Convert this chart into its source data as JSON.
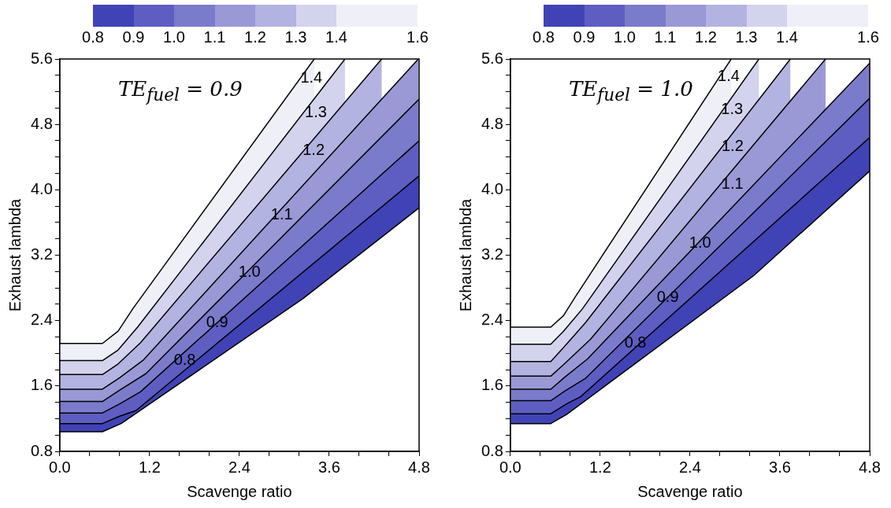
{
  "chart_data": [
    {
      "type": "area",
      "xlabel": "Scavenge ratio",
      "ylabel": "Exhaust lambda",
      "annotations": [
        "TE$_{fuel}$ = 0.9"
      ],
      "xlim": [
        0,
        4.8
      ],
      "xticks": [
        {
          "value": 0,
          "label": "0.0"
        },
        {
          "value": 0.4,
          "label": null
        },
        {
          "value": 0.8,
          "label": null
        },
        1.2,
        {
          "value": 1.6,
          "label": null
        },
        {
          "value": 2,
          "label": null
        },
        2.4,
        {
          "value": 2.8,
          "label": null
        },
        {
          "value": 3.2,
          "label": null
        },
        3.6,
        {
          "value": 4,
          "label": null
        },
        {
          "value": 4.4,
          "label": null
        },
        4.8
      ],
      "ylim": [
        0.8,
        5.6
      ],
      "yticks": [
        0.8,
        {
          "value": 1,
          "label": null
        },
        {
          "value": 1.2,
          "label": null
        },
        {
          "value": 1.4,
          "label": null
        },
        1.6,
        {
          "value": 1.8,
          "label": null
        },
        {
          "value": 2,
          "label": null
        },
        {
          "value": 2.2,
          "label": null
        },
        2.4,
        {
          "value": 2.6,
          "label": null
        },
        {
          "value": 2.8,
          "label": null
        },
        {
          "value": 3,
          "label": null
        },
        3.2,
        {
          "value": 3.4,
          "label": null
        },
        {
          "value": 3.6,
          "label": null
        },
        {
          "value": 3.8,
          "label": null
        },
        {
          "value": 4,
          "label": "4.0"
        },
        {
          "value": 4.2,
          "label": null
        },
        {
          "value": 4.4,
          "label": null
        },
        {
          "value": 4.6,
          "label": null
        },
        4.8,
        {
          "value": 5,
          "label": null
        },
        {
          "value": 5.2,
          "label": null
        },
        {
          "value": 5.4,
          "label": null
        },
        5.6
      ],
      "cticks": [
        0.8,
        0.9,
        {
          "value": 1,
          "label": "1.0"
        },
        1.1,
        1.2,
        1.3,
        1.4,
        1.6
      ],
      "series": [
        {
          "name": "0.8",
          "type": "line",
          "color": "#000000",
          "x": [
            0,
            0.57,
            0.82,
            3.25,
            4.8
          ],
          "values": [
            1.04,
            1.04,
            1.14,
            2.67,
            3.78
          ]
        },
        {
          "name": "0.9",
          "color": "#4043b6",
          "x": [
            0,
            0.57,
            0.8,
            1.02,
            4.8
          ],
          "values": [
            1.14,
            1.14,
            1.23,
            1.3,
            4.17
          ]
        },
        {
          "name": "1.0",
          "color": "#5e5ec2",
          "x": [
            0,
            0.57,
            0.8,
            1.08,
            4.8
          ],
          "values": [
            1.27,
            1.27,
            1.38,
            1.53,
            4.6
          ]
        },
        {
          "name": "1.1",
          "color": "#7b7bcb",
          "x": [
            0,
            0.57,
            0.8,
            1.15,
            4.8
          ],
          "values": [
            1.41,
            1.41,
            1.55,
            1.75,
            5.11
          ]
        },
        {
          "name": "1.2",
          "color": "#9a99d6",
          "x": [
            0,
            0.57,
            0.8,
            1.12,
            4.79
          ],
          "values": [
            1.56,
            1.56,
            1.7,
            1.92,
            5.6
          ]
        },
        {
          "name": "1.3",
          "color": "#b3b3e1",
          "x": [
            0,
            0.57,
            0.78,
            1.08,
            4.3
          ],
          "values": [
            1.74,
            1.74,
            1.87,
            2.13,
            5.6
          ]
        },
        {
          "name": "1.4",
          "color": "#d3d3ee",
          "x": [
            0,
            0.57,
            0.78,
            1.04,
            3.81
          ],
          "values": [
            1.91,
            1.91,
            2.04,
            2.32,
            5.6
          ]
        },
        {
          "color": "#efeff8",
          "x": [
            0,
            0.57,
            0.78,
            0.98,
            3.4
          ],
          "values": [
            2.12,
            2.12,
            2.27,
            2.55,
            5.6
          ]
        }
      ]
    },
    {
      "type": "area",
      "xlabel": "Scavenge ratio",
      "ylabel": "Exhaust lambda",
      "annotations": [
        "TE$_{fuel}$ = 1.0"
      ],
      "xlim": [
        0,
        4.8
      ],
      "xticks": [
        {
          "value": 0,
          "label": "0.0"
        },
        {
          "value": 0.4,
          "label": null
        },
        {
          "value": 0.8,
          "label": null
        },
        1.2,
        {
          "value": 1.6,
          "label": null
        },
        {
          "value": 2,
          "label": null
        },
        2.4,
        {
          "value": 2.8,
          "label": null
        },
        {
          "value": 3.2,
          "label": null
        },
        3.6,
        {
          "value": 4,
          "label": null
        },
        {
          "value": 4.4,
          "label": null
        },
        4.8
      ],
      "ylim": [
        0.8,
        5.6
      ],
      "yticks": [
        0.8,
        {
          "value": 1,
          "label": null
        },
        {
          "value": 1.2,
          "label": null
        },
        {
          "value": 1.4,
          "label": null
        },
        1.6,
        {
          "value": 1.8,
          "label": null
        },
        {
          "value": 2,
          "label": null
        },
        {
          "value": 2.2,
          "label": null
        },
        2.4,
        {
          "value": 2.6,
          "label": null
        },
        {
          "value": 2.8,
          "label": null
        },
        {
          "value": 3,
          "label": null
        },
        3.2,
        {
          "value": 3.4,
          "label": null
        },
        {
          "value": 3.6,
          "label": null
        },
        {
          "value": 3.8,
          "label": null
        },
        {
          "value": 4,
          "label": "4.0"
        },
        {
          "value": 4.2,
          "label": null
        },
        {
          "value": 4.4,
          "label": null
        },
        {
          "value": 4.6,
          "label": null
        },
        4.8,
        {
          "value": 5,
          "label": null
        },
        {
          "value": 5.2,
          "label": null
        },
        {
          "value": 5.4,
          "label": null
        },
        5.6
      ],
      "cticks": [
        0.8,
        0.9,
        {
          "value": 1,
          "label": "1.0"
        },
        1.1,
        1.2,
        1.3,
        1.4,
        1.6
      ],
      "series": [
        {
          "name": "0.8",
          "type": "line",
          "color": "#000000",
          "x": [
            0,
            0.54,
            0.75,
            3.25,
            4.8
          ],
          "values": [
            1.14,
            1.14,
            1.25,
            2.95,
            4.23
          ]
        },
        {
          "name": "0.9",
          "color": "#4043b6",
          "x": [
            0,
            0.54,
            0.75,
            0.94,
            4.8
          ],
          "values": [
            1.26,
            1.26,
            1.38,
            1.47,
            4.64
          ]
        },
        {
          "name": "1.0",
          "color": "#5e5ec2",
          "x": [
            0,
            0.54,
            0.73,
            1.0,
            4.8
          ],
          "values": [
            1.42,
            1.42,
            1.54,
            1.69,
            5.12
          ]
        },
        {
          "name": "1.1",
          "color": "#7b7bcb",
          "x": [
            0,
            0.54,
            0.73,
            1.03,
            4.8
          ],
          "values": [
            1.56,
            1.56,
            1.71,
            1.93,
            5.55
          ]
        },
        {
          "name": "1.2",
          "color": "#9a99d6",
          "x": [
            0,
            0.54,
            0.71,
            1.07,
            4.21
          ],
          "values": [
            1.72,
            1.72,
            1.86,
            2.17,
            5.6
          ]
        },
        {
          "name": "1.3",
          "color": "#b3b3e1",
          "x": [
            0,
            0.54,
            0.71,
            1.0,
            3.74
          ],
          "values": [
            1.9,
            1.9,
            2.07,
            2.37,
            5.6
          ]
        },
        {
          "name": "1.4",
          "color": "#d3d3ee",
          "x": [
            0,
            0.54,
            0.71,
            0.96,
            3.32
          ],
          "values": [
            2.11,
            2.11,
            2.27,
            2.54,
            5.6
          ]
        },
        {
          "color": "#efeff8",
          "x": [
            0,
            0.54,
            0.71,
            0.86,
            2.95
          ],
          "values": [
            2.32,
            2.32,
            2.46,
            2.68,
            5.6
          ]
        }
      ]
    }
  ]
}
